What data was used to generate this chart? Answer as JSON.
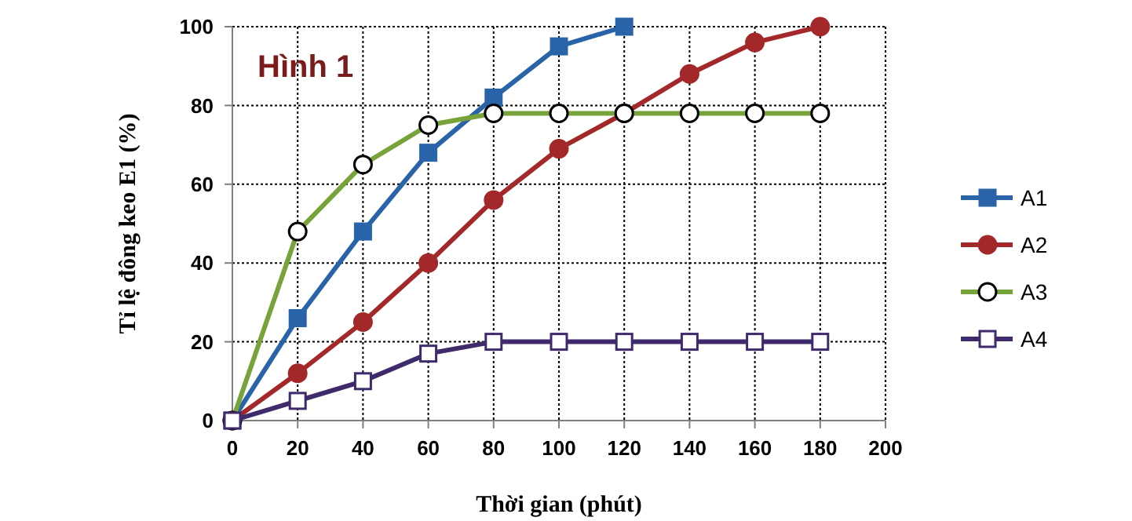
{
  "chart_data": {
    "type": "line",
    "title": "Hình 1",
    "xlabel": "Thời gian (phút)",
    "ylabel": "Tỉ lệ đông keo E1 (%)",
    "x": [
      0,
      20,
      40,
      60,
      80,
      100,
      120,
      140,
      160,
      180
    ],
    "xlim": [
      0,
      200
    ],
    "xticks": [
      0,
      20,
      40,
      60,
      80,
      100,
      120,
      140,
      160,
      180,
      200
    ],
    "ylim": [
      0,
      100
    ],
    "yticks": [
      0,
      20,
      40,
      60,
      80,
      100
    ],
    "grid": true,
    "legend": "right",
    "line_style": "solid",
    "series": [
      {
        "name": "A1",
        "color": "#2a64a8",
        "marker": "square",
        "values": [
          0,
          26,
          48,
          68,
          82,
          95,
          100,
          null,
          null,
          null
        ]
      },
      {
        "name": "A2",
        "color": "#a3282a",
        "marker": "circle",
        "values": [
          0,
          12,
          25,
          40,
          56,
          69,
          78,
          88,
          96,
          100
        ]
      },
      {
        "name": "A3",
        "color": "#77a33a",
        "marker": "circle",
        "values": [
          0,
          48,
          65,
          75,
          78,
          78,
          78,
          78,
          78,
          78
        ]
      },
      {
        "name": "A4",
        "color": "#3f2a6b",
        "marker": "square",
        "values": [
          0,
          5,
          10,
          17,
          20,
          20,
          20,
          20,
          20,
          20
        ]
      }
    ]
  }
}
